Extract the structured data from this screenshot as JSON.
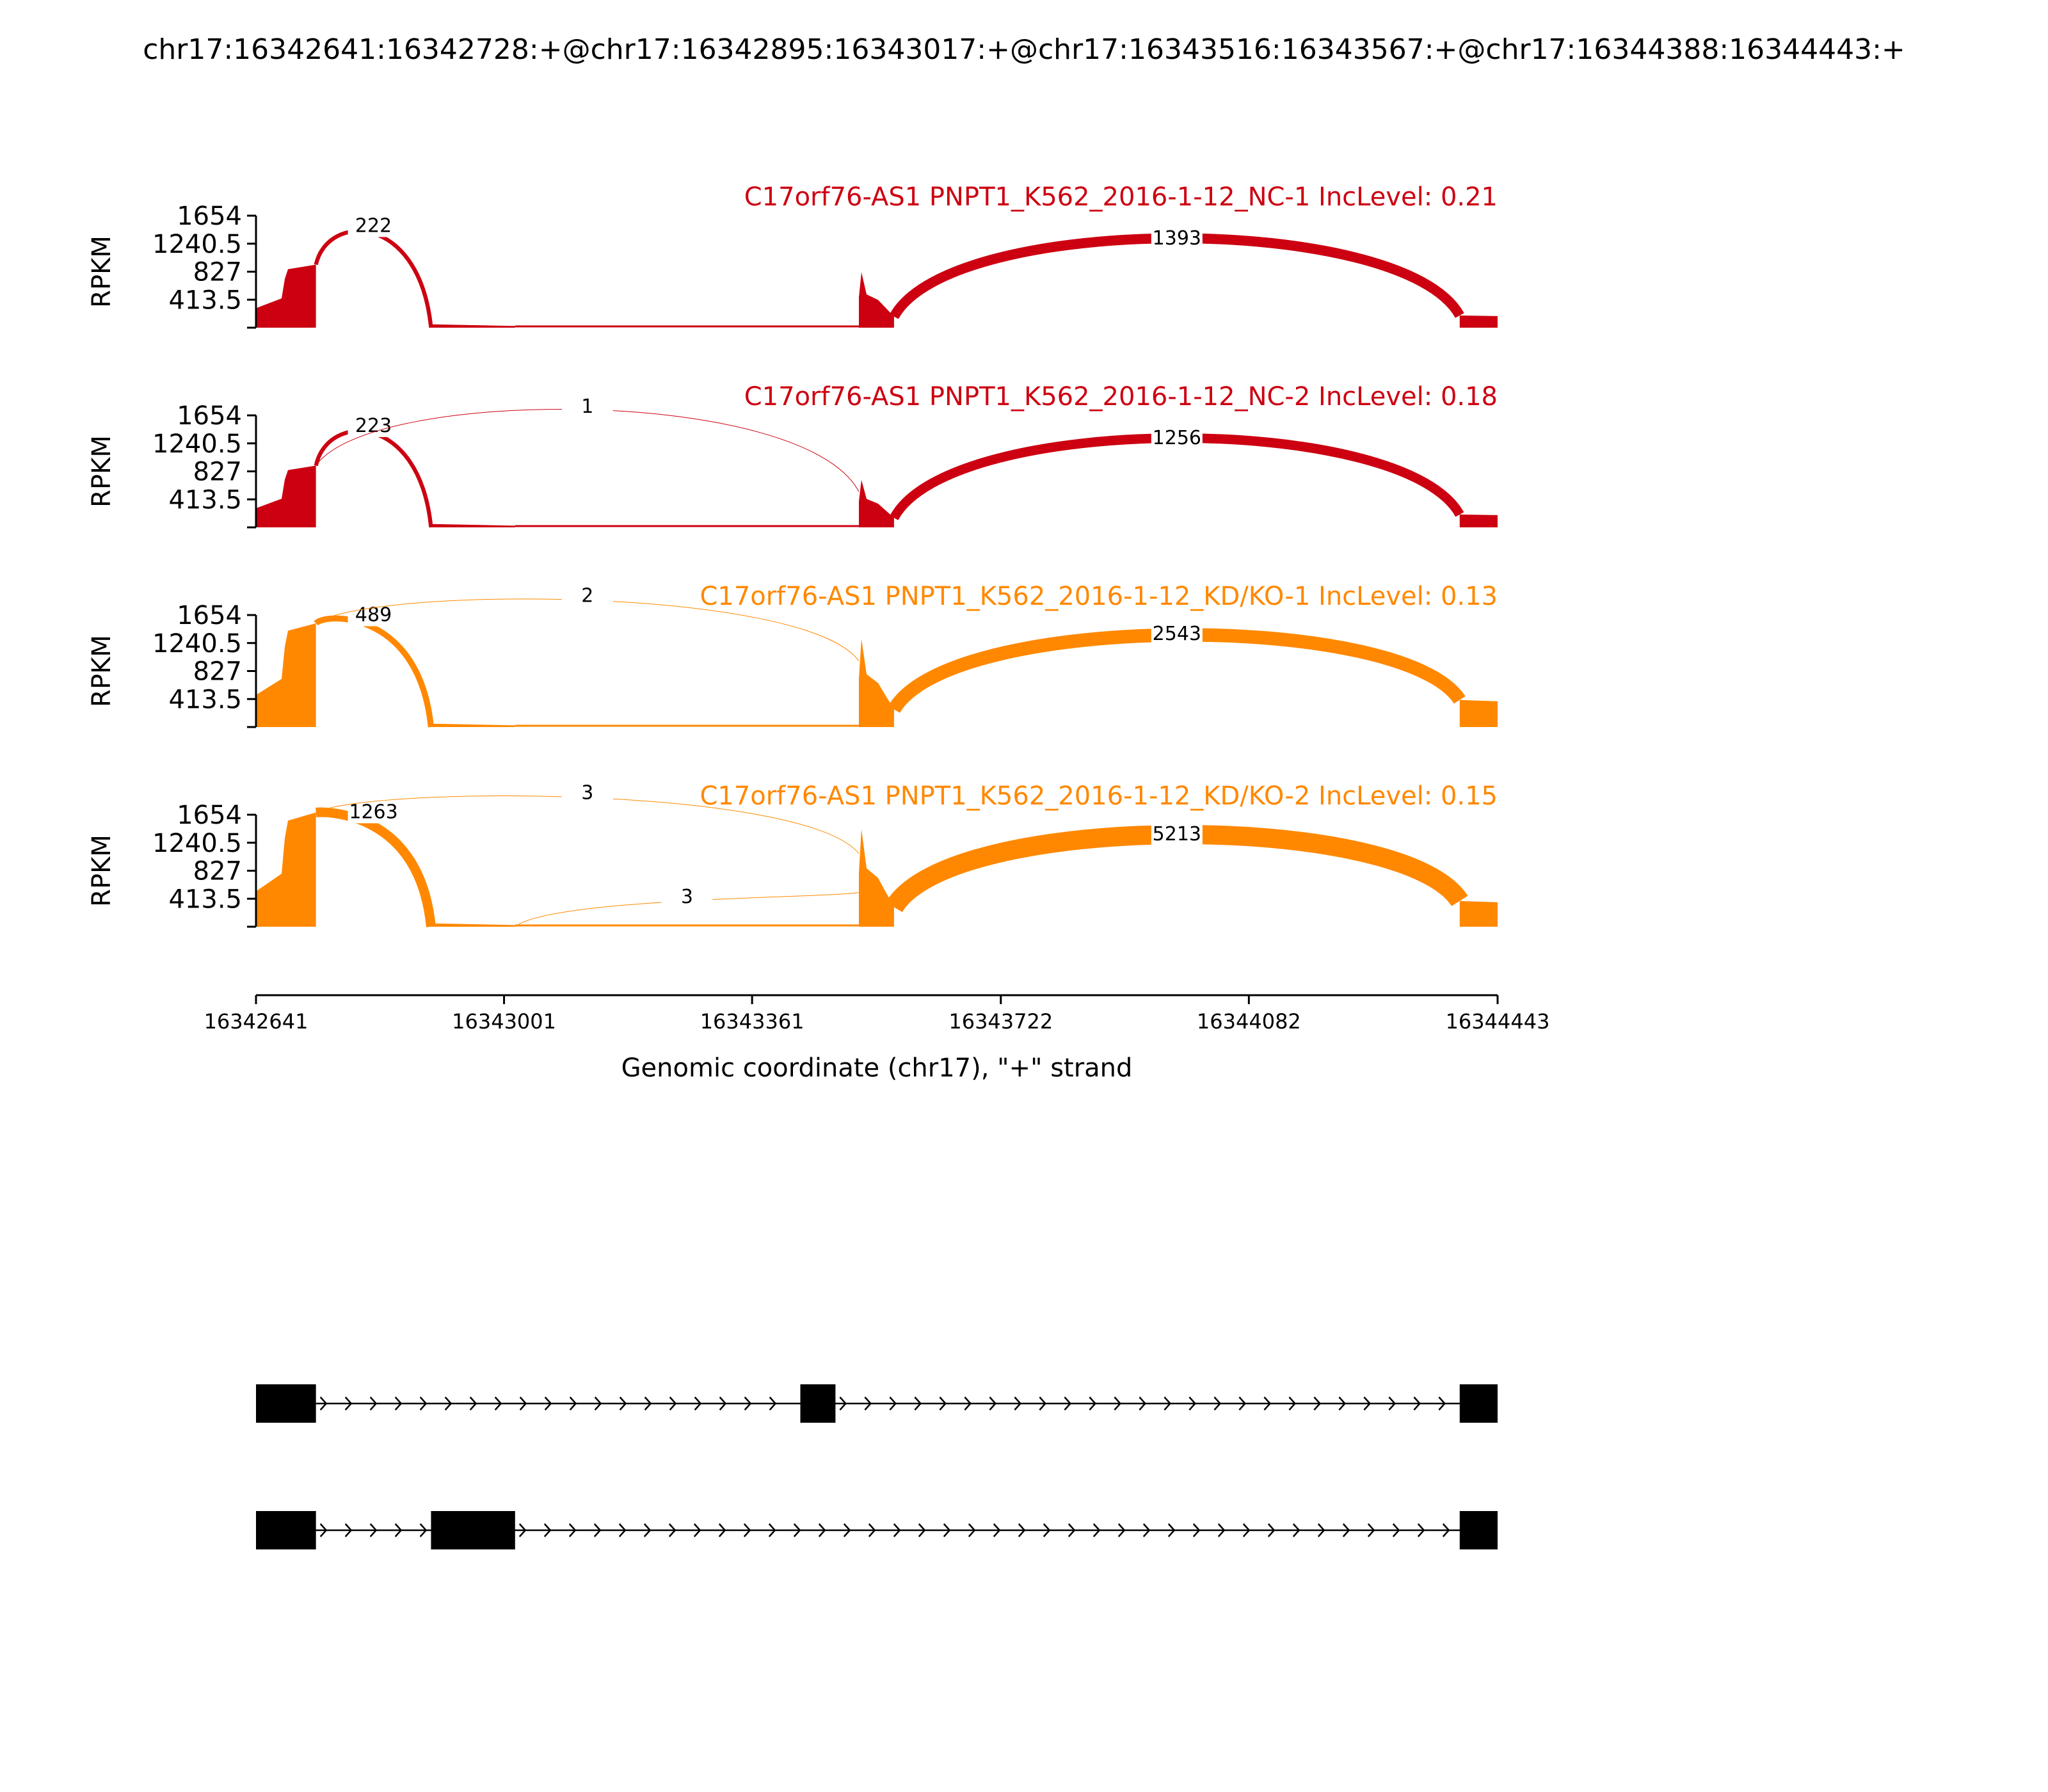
{
  "chart_data": {
    "type": "sashimi",
    "title": "chr17:16342641:16342728:+@chr17:16342895:16343017:+@chr17:16343516:16343567:+@chr17:16344388:16344443:+",
    "xlabel": "Genomic coordinate (chr17), \"+\" strand",
    "ylabel": "RPKM",
    "xlim": [
      16342641,
      16344443
    ],
    "x_ticks": [
      "16342641",
      "16343001",
      "16343361",
      "16343722",
      "16344082",
      "16344443"
    ],
    "y_ticks": [
      "413.5",
      "827",
      "1240.5",
      "1654"
    ],
    "ylim": [
      0,
      1654
    ],
    "colors": {
      "nc": "#cc0011",
      "kd": "#ff8800",
      "axis": "#000000"
    },
    "exons": [
      {
        "start": 16342641,
        "end": 16342728
      },
      {
        "start": 16342895,
        "end": 16343017
      },
      {
        "start": 16343516,
        "end": 16343567
      },
      {
        "start": 16344388,
        "end": 16344443
      }
    ],
    "samples": [
      {
        "label": "C17orf76-AS1 PNPT1_K562_2016-1-12_NC-1 IncLevel: 0.21",
        "color": "#cc0011",
        "peaks": [
          960,
          10,
          820,
          180
        ],
        "junctions": [
          {
            "from": 16342728,
            "to": 16342895,
            "count": "222",
            "weight": 222
          },
          {
            "from": 16343567,
            "to": 16344388,
            "count": "1393",
            "weight": 1393
          }
        ]
      },
      {
        "label": "C17orf76-AS1 PNPT1_K562_2016-1-12_NC-2 IncLevel: 0.18",
        "color": "#cc0011",
        "peaks": [
          940,
          10,
          700,
          190
        ],
        "junctions": [
          {
            "from": 16342728,
            "to": 16342895,
            "count": "223",
            "weight": 223
          },
          {
            "from": 16342728,
            "to": 16343516,
            "count": "1",
            "weight": 1
          },
          {
            "from": 16343567,
            "to": 16344388,
            "count": "1256",
            "weight": 1256
          }
        ]
      },
      {
        "label": "C17orf76-AS1 PNPT1_K562_2016-1-12_KD/KO-1 IncLevel: 0.13",
        "color": "#ff8800",
        "peaks": [
          1580,
          10,
          1300,
          400
        ],
        "junctions": [
          {
            "from": 16342728,
            "to": 16342895,
            "count": "489",
            "weight": 489
          },
          {
            "from": 16342728,
            "to": 16343516,
            "count": "2",
            "weight": 2
          },
          {
            "from": 16343567,
            "to": 16344388,
            "count": "2543",
            "weight": 2543
          }
        ]
      },
      {
        "label": "C17orf76-AS1 PNPT1_K562_2016-1-12_KD/KO-2 IncLevel: 0.15",
        "color": "#ff8800",
        "peaks": [
          1740,
          10,
          1440,
          380
        ],
        "junctions": [
          {
            "from": 16342728,
            "to": 16342895,
            "count": "1263",
            "weight": 1263
          },
          {
            "from": 16342728,
            "to": 16343516,
            "count": "3",
            "weight": 3
          },
          {
            "from": 16343017,
            "to": 16343516,
            "count": "3",
            "weight": 3
          },
          {
            "from": 16343567,
            "to": 16344388,
            "count": "5213",
            "weight": 5213
          }
        ]
      }
    ],
    "isoforms": [
      [
        {
          "start": 16342641,
          "end": 16342728
        },
        {
          "start": 16343431,
          "end": 16343482
        },
        {
          "start": 16344388,
          "end": 16344443
        }
      ],
      [
        {
          "start": 16342641,
          "end": 16342728
        },
        {
          "start": 16342895,
          "end": 16343017
        },
        {
          "start": 16344388,
          "end": 16344443
        }
      ]
    ]
  }
}
